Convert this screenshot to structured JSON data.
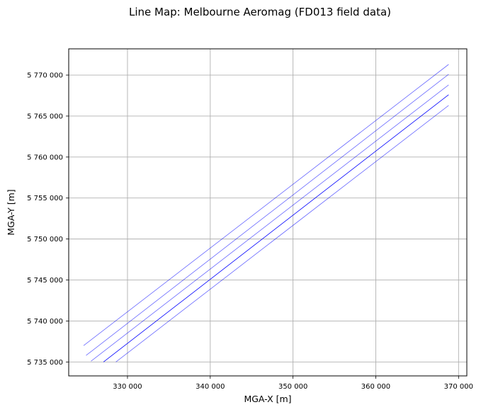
{
  "chart_data": {
    "type": "line",
    "title": "Line Map: Melbourne Aeromag (FD013 field data)",
    "xlabel": "MGA-X [m]",
    "ylabel": "MGA-Y [m]",
    "xlim": [
      322900,
      371000
    ],
    "ylim": [
      5733300,
      5773200
    ],
    "xticks": [
      330000,
      340000,
      350000,
      360000,
      370000
    ],
    "xtick_labels": [
      "330 000",
      "340 000",
      "350 000",
      "360 000",
      "370 000"
    ],
    "yticks": [
      5735000,
      5740000,
      5745000,
      5750000,
      5755000,
      5760000,
      5765000,
      5770000
    ],
    "ytick_labels": [
      "5 735 000",
      "5 740 000",
      "5 745 000",
      "5 750 000",
      "5 755 000",
      "5 760 000",
      "5 765 000",
      "5 770 000"
    ],
    "grid": true,
    "line_color": "#0000ff",
    "series": [
      {
        "x": [
          324700,
          368800
        ],
        "y": [
          5737000,
          5771300
        ],
        "opacity": 0.6
      },
      {
        "x": [
          325000,
          368800
        ],
        "y": [
          5735800,
          5770100
        ],
        "opacity": 0.6
      },
      {
        "x": [
          325600,
          368800
        ],
        "y": [
          5735100,
          5768800
        ],
        "opacity": 0.6
      },
      {
        "x": [
          327100,
          368800
        ],
        "y": [
          5735000,
          5767600
        ],
        "opacity": 1.0
      },
      {
        "x": [
          328600,
          368800
        ],
        "y": [
          5735000,
          5766300
        ],
        "opacity": 0.6
      }
    ]
  }
}
